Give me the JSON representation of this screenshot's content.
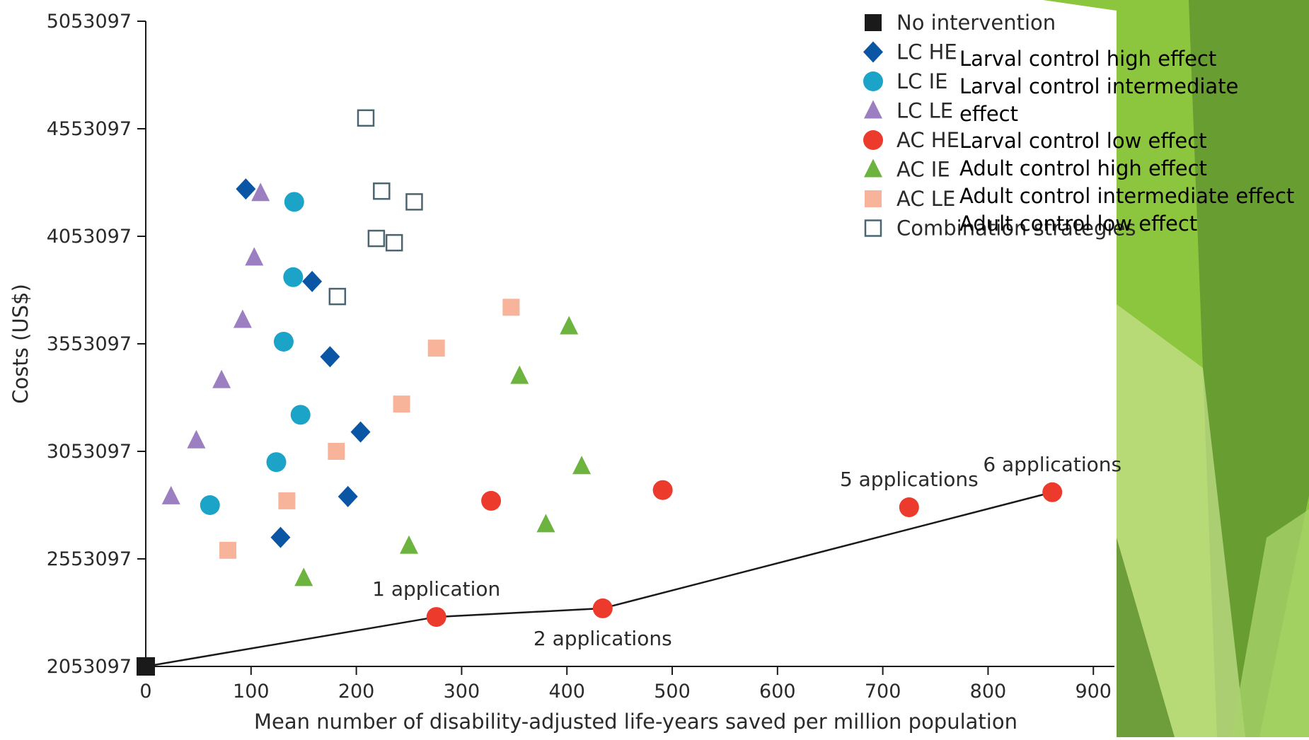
{
  "colors": {
    "no_intervention": "#1a1a1a",
    "lc_he": "#0b56a4",
    "lc_ie": "#1ba3c8",
    "lc_le": "#9b7fc0",
    "ac_he": "#ec3a2d",
    "ac_ie": "#6cb33f",
    "ac_le": "#f7b49a",
    "combination": "#4a6570",
    "frontier_line": "#1a1a1a",
    "slide_green_dark": "#5b8f2e",
    "slide_green_mid": "#8cc63f",
    "slide_green_light": "#c9e38f"
  },
  "icons": {
    "no_intervention": "square",
    "lc_he": "diamond",
    "lc_ie": "circle",
    "lc_le": "triangle",
    "ac_he": "circle",
    "ac_ie": "triangle",
    "ac_le": "square",
    "combination": "open-square"
  },
  "chart_data": {
    "type": "scatter",
    "title": "",
    "xlabel": "Mean number of disability-adjusted life-years saved per million population",
    "ylabel": "Costs (US$)",
    "xlim": [
      0,
      920
    ],
    "ylim": [
      2053097,
      5053097
    ],
    "x_ticks": [
      0,
      100,
      200,
      300,
      400,
      500,
      600,
      700,
      800,
      900
    ],
    "x_tick_labels": [
      "0",
      "100",
      "200",
      "300",
      "400",
      "500",
      "600",
      "700",
      "800",
      "900"
    ],
    "y_ticks": [
      2053097,
      2553097,
      3053097,
      3553097,
      4053097,
      4553097,
      5053097
    ],
    "y_tick_labels": [
      "2053097",
      "2553097",
      "3053097",
      "3553097",
      "4053097",
      "4553097",
      "5053097"
    ],
    "grid": false,
    "legend_position": "top-right",
    "series": [
      {
        "name": "No intervention",
        "key": "no_intervention",
        "x": [
          0
        ],
        "y": [
          2053097
        ]
      },
      {
        "name": "LC HE",
        "key": "lc_he",
        "x": [
          95,
          158,
          175,
          204,
          192,
          128
        ],
        "y": [
          4273097,
          3843097,
          3493097,
          3143097,
          2843097,
          2653097
        ]
      },
      {
        "name": "LC IE",
        "key": "lc_ie",
        "x": [
          141,
          140,
          131,
          147,
          124,
          61
        ],
        "y": [
          4213097,
          3863097,
          3563097,
          3223097,
          3003097,
          2803097
        ]
      },
      {
        "name": "LC LE",
        "key": "lc_le",
        "x": [
          109,
          103,
          92,
          72,
          48,
          24
        ],
        "y": [
          4253097,
          3953097,
          3663097,
          3383097,
          3103097,
          2843097
        ]
      },
      {
        "name": "AC HE",
        "key": "ac_he",
        "x": [
          276,
          328,
          434,
          491,
          725,
          861
        ],
        "y": [
          2283097,
          2823097,
          2323097,
          2873097,
          2793097,
          2863097
        ]
      },
      {
        "name": "AC IE",
        "key": "ac_ie",
        "x": [
          402,
          355,
          414,
          380,
          250,
          150
        ],
        "y": [
          3633097,
          3403097,
          2983097,
          2713097,
          2613097,
          2463097
        ]
      },
      {
        "name": "AC LE",
        "key": "ac_le",
        "x": [
          347,
          276,
          243,
          181,
          134,
          78
        ],
        "y": [
          3723097,
          3533097,
          3273097,
          3053097,
          2823097,
          2593097
        ]
      },
      {
        "name": "Combination strategies",
        "key": "combination",
        "x": [
          209,
          224,
          255,
          219,
          236,
          182
        ],
        "y": [
          4603097,
          4263097,
          4213097,
          4043097,
          4023097,
          3773097
        ]
      }
    ],
    "frontier": {
      "x": [
        0,
        276,
        434,
        861
      ],
      "y": [
        2053097,
        2283097,
        2323097,
        2863097
      ]
    },
    "annotations": [
      {
        "text": "1 application",
        "x": 276,
        "y": 2283097,
        "position": "above"
      },
      {
        "text": "2 applications",
        "x": 434,
        "y": 2323097,
        "position": "below"
      },
      {
        "text": "5 applications",
        "x": 725,
        "y": 2793097,
        "position": "above"
      },
      {
        "text": "6 applications",
        "x": 861,
        "y": 2863097,
        "position": "above"
      }
    ],
    "overlay_labels": [
      "Larval control high effect",
      "Larval control intermediate",
      "effect",
      "Larval control low effect",
      "Adult control high effect",
      "Adult control intermediate effect",
      "Adult control low effect"
    ]
  }
}
